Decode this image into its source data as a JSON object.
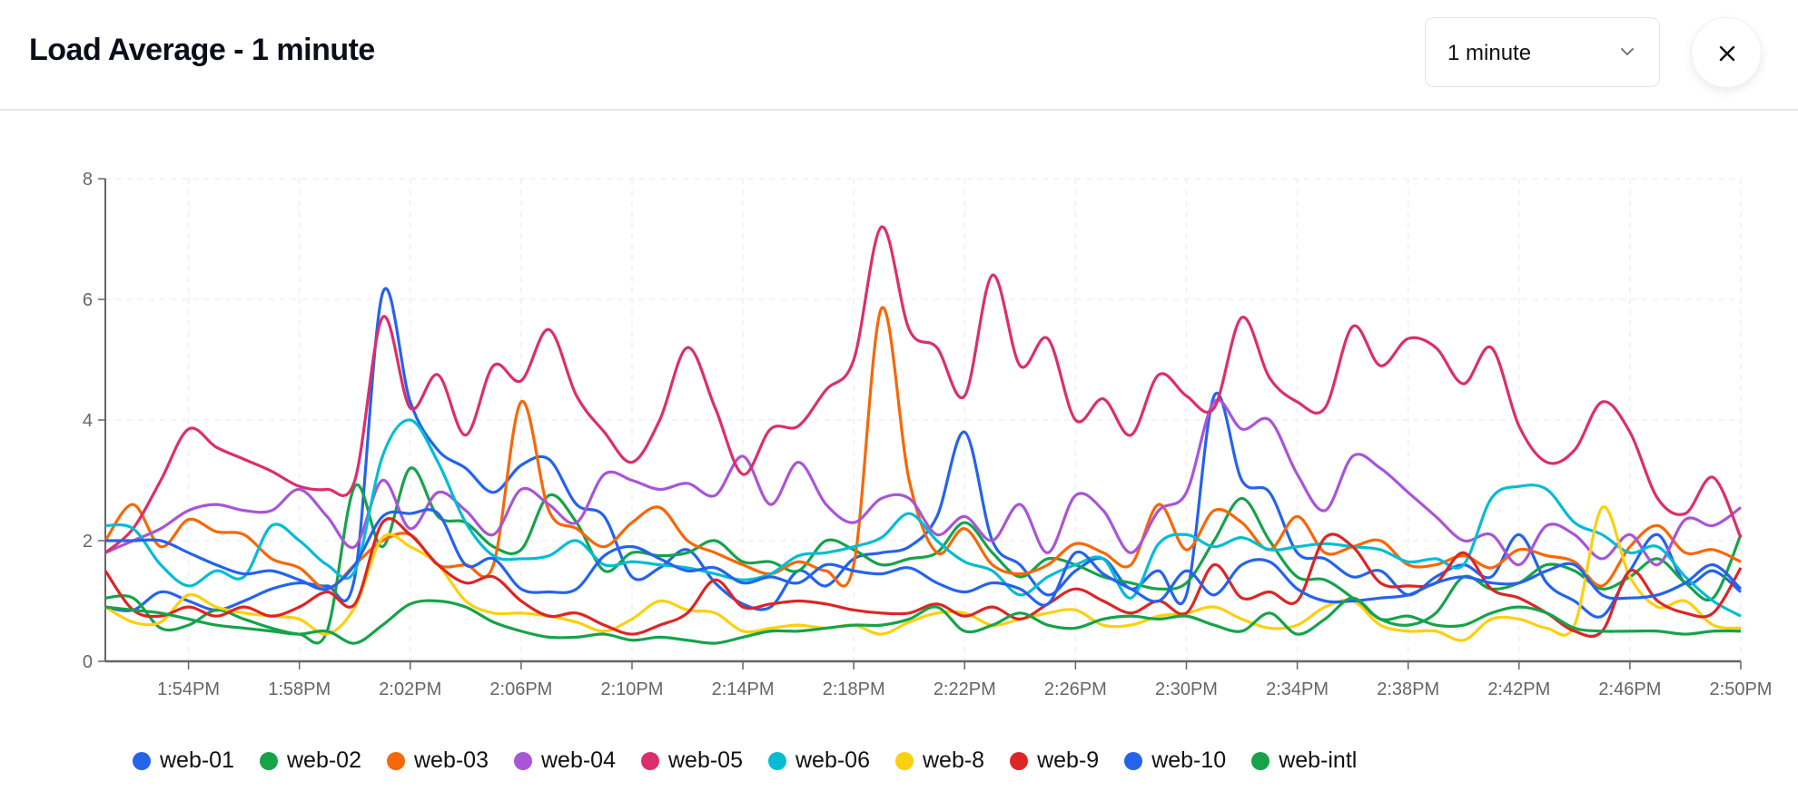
{
  "header": {
    "title": "Load Average - 1 minute",
    "select_value": "1 minute",
    "select_icon": "chevron-down-icon",
    "close_icon": "close-icon"
  },
  "chart_data": {
    "type": "line",
    "title": "",
    "xlabel": "",
    "ylabel": "",
    "ylim": [
      0,
      8
    ],
    "yticks": [
      "0",
      "2",
      "4",
      "6",
      "8"
    ],
    "xlim": [
      "1:51PM",
      "2:50PM"
    ],
    "xticks": [
      "1:54PM",
      "1:58PM",
      "2:02PM",
      "2:06PM",
      "2:10PM",
      "2:14PM",
      "2:18PM",
      "2:22PM",
      "2:26PM",
      "2:30PM",
      "2:34PM",
      "2:38PM",
      "2:42PM",
      "2:46PM",
      "2:50PM"
    ],
    "grid": true,
    "legend_placement": "bottom",
    "x": [
      "1:51PM",
      "1:52PM",
      "1:53PM",
      "1:54PM",
      "1:55PM",
      "1:56PM",
      "1:57PM",
      "1:58PM",
      "1:59PM",
      "2:00PM",
      "2:01PM",
      "2:02PM",
      "2:03PM",
      "2:04PM",
      "2:05PM",
      "2:06PM",
      "2:07PM",
      "2:08PM",
      "2:09PM",
      "2:10PM",
      "2:11PM",
      "2:12PM",
      "2:13PM",
      "2:14PM",
      "2:15PM",
      "2:16PM",
      "2:17PM",
      "2:18PM",
      "2:19PM",
      "2:20PM",
      "2:21PM",
      "2:22PM",
      "2:23PM",
      "2:24PM",
      "2:25PM",
      "2:26PM",
      "2:27PM",
      "2:28PM",
      "2:29PM",
      "2:30PM",
      "2:31PM",
      "2:32PM",
      "2:33PM",
      "2:34PM",
      "2:35PM",
      "2:36PM",
      "2:37PM",
      "2:38PM",
      "2:39PM",
      "2:40PM",
      "2:41PM",
      "2:42PM",
      "2:43PM",
      "2:44PM",
      "2:45PM",
      "2:46PM",
      "2:47PM",
      "2:48PM",
      "2:49PM",
      "2:50PM"
    ],
    "series": [
      {
        "name": "web-01",
        "color": "#2563eb",
        "values": [
          0.9,
          0.85,
          1.15,
          1.0,
          0.85,
          1.0,
          1.2,
          1.3,
          1.25,
          1.4,
          6.1,
          4.3,
          3.5,
          3.2,
          2.8,
          3.25,
          3.35,
          2.6,
          2.4,
          1.4,
          1.55,
          1.85,
          1.3,
          0.95,
          0.9,
          1.5,
          1.25,
          1.7,
          1.8,
          1.9,
          2.4,
          3.8,
          2.0,
          1.6,
          1.1,
          1.5,
          1.7,
          1.2,
          1.5,
          1.1,
          4.4,
          3.0,
          2.8,
          1.8,
          1.7,
          1.4,
          1.5,
          1.1,
          1.4,
          1.6,
          1.4,
          2.1,
          1.3,
          1.0,
          0.75,
          1.5,
          2.1,
          1.3,
          1.5,
          1.15
        ]
      },
      {
        "name": "web-02",
        "color": "#16a34a",
        "values": [
          1.05,
          1.05,
          0.55,
          0.6,
          0.85,
          0.7,
          0.55,
          0.45,
          0.5,
          2.9,
          1.9,
          3.2,
          2.4,
          2.3,
          1.9,
          1.85,
          2.75,
          2.3,
          1.5,
          1.8,
          1.75,
          1.8,
          2.0,
          1.65,
          1.65,
          1.5,
          2.0,
          1.85,
          1.6,
          1.7,
          1.8,
          2.3,
          1.8,
          1.4,
          1.7,
          1.6,
          1.4,
          1.3,
          1.2,
          1.3,
          2.0,
          2.7,
          2.0,
          1.4,
          1.35,
          1.05,
          0.7,
          0.6,
          0.8,
          1.4,
          1.2,
          1.3,
          1.6,
          1.5,
          1.2,
          1.4,
          1.7,
          1.3,
          1.05,
          2.1
        ]
      },
      {
        "name": "web-03",
        "color": "#f76707",
        "values": [
          2.0,
          2.6,
          1.9,
          2.35,
          2.15,
          2.1,
          1.7,
          1.55,
          1.2,
          1.6,
          2.0,
          2.1,
          1.6,
          1.6,
          1.6,
          4.3,
          2.5,
          2.2,
          1.9,
          2.3,
          2.55,
          2.0,
          1.8,
          1.6,
          1.45,
          1.65,
          1.5,
          1.6,
          5.85,
          3.0,
          1.8,
          2.2,
          1.6,
          1.45,
          1.6,
          1.95,
          1.8,
          1.6,
          2.6,
          1.85,
          2.5,
          2.3,
          1.85,
          2.4,
          1.8,
          1.9,
          2.0,
          1.6,
          1.6,
          1.75,
          1.55,
          1.85,
          1.75,
          1.65,
          1.25,
          1.9,
          2.25,
          1.8,
          1.85,
          1.65
        ]
      },
      {
        "name": "web-04",
        "color": "#a855d8",
        "values": [
          1.8,
          2.0,
          2.2,
          2.5,
          2.6,
          2.5,
          2.5,
          2.85,
          2.4,
          1.9,
          3.0,
          2.2,
          2.8,
          2.5,
          2.1,
          2.85,
          2.6,
          2.3,
          3.1,
          3.0,
          2.85,
          2.95,
          2.75,
          3.4,
          2.6,
          3.3,
          2.6,
          2.3,
          2.7,
          2.7,
          2.1,
          2.4,
          2.0,
          2.6,
          1.8,
          2.75,
          2.5,
          1.8,
          2.5,
          2.8,
          4.3,
          3.85,
          4.0,
          3.1,
          2.5,
          3.4,
          3.2,
          2.8,
          2.4,
          2.0,
          2.1,
          1.6,
          2.25,
          2.1,
          1.7,
          2.1,
          1.6,
          2.35,
          2.25,
          2.55
        ]
      },
      {
        "name": "web-05",
        "color": "#db2f6c",
        "values": [
          1.8,
          2.2,
          3.0,
          3.85,
          3.55,
          3.35,
          3.15,
          2.9,
          2.85,
          3.0,
          5.7,
          4.2,
          4.75,
          3.75,
          4.9,
          4.65,
          5.5,
          4.4,
          3.8,
          3.3,
          4.0,
          5.2,
          4.2,
          3.1,
          3.85,
          3.9,
          4.5,
          5.0,
          7.2,
          5.5,
          5.2,
          4.4,
          6.4,
          4.9,
          5.35,
          4.0,
          4.35,
          3.75,
          4.75,
          4.4,
          4.2,
          5.7,
          4.7,
          4.3,
          4.2,
          5.55,
          4.9,
          5.35,
          5.2,
          4.6,
          5.2,
          3.9,
          3.3,
          3.5,
          4.3,
          3.8,
          2.7,
          2.45,
          3.05,
          2.05
        ]
      },
      {
        "name": "web-06",
        "color": "#06bcd4",
        "values": [
          2.25,
          2.2,
          1.6,
          1.25,
          1.5,
          1.4,
          2.25,
          2.0,
          1.6,
          1.5,
          3.4,
          4.0,
          3.3,
          2.3,
          1.75,
          1.7,
          1.75,
          2.0,
          1.6,
          1.65,
          1.6,
          1.55,
          1.45,
          1.35,
          1.45,
          1.75,
          1.8,
          1.9,
          2.05,
          2.45,
          2.0,
          1.65,
          1.5,
          1.1,
          1.4,
          1.6,
          1.7,
          1.05,
          1.95,
          2.1,
          1.9,
          2.05,
          1.85,
          1.9,
          1.95,
          1.9,
          1.85,
          1.65,
          1.7,
          1.6,
          2.7,
          2.9,
          2.85,
          2.3,
          2.1,
          1.8,
          1.9,
          1.4,
          1.0,
          0.75
        ]
      },
      {
        "name": "web-8",
        "color": "#fcd00e",
        "values": [
          0.9,
          0.65,
          0.65,
          1.1,
          0.9,
          0.8,
          0.75,
          0.7,
          0.45,
          0.9,
          2.05,
          1.9,
          1.6,
          1.0,
          0.8,
          0.8,
          0.75,
          0.65,
          0.5,
          0.7,
          1.0,
          0.85,
          0.8,
          0.5,
          0.55,
          0.6,
          0.55,
          0.6,
          0.45,
          0.65,
          0.8,
          0.8,
          0.6,
          0.7,
          0.8,
          0.85,
          0.6,
          0.6,
          0.75,
          0.8,
          0.9,
          0.7,
          0.55,
          0.6,
          0.9,
          1.0,
          0.6,
          0.5,
          0.5,
          0.35,
          0.7,
          0.7,
          0.55,
          0.6,
          2.55,
          1.4,
          0.9,
          1.0,
          0.6,
          0.55
        ]
      },
      {
        "name": "web-9",
        "color": "#dc2626",
        "values": [
          1.5,
          0.85,
          0.75,
          0.9,
          0.75,
          0.9,
          0.75,
          0.9,
          1.15,
          0.95,
          2.3,
          2.1,
          1.6,
          1.3,
          1.4,
          1.0,
          0.75,
          0.8,
          0.6,
          0.45,
          0.6,
          0.8,
          1.35,
          0.9,
          0.95,
          1.0,
          0.95,
          0.85,
          0.8,
          0.8,
          0.95,
          0.75,
          0.9,
          0.7,
          0.95,
          1.2,
          1.0,
          0.8,
          1.0,
          0.8,
          1.6,
          1.05,
          1.15,
          1.0,
          2.05,
          1.9,
          1.3,
          1.25,
          1.3,
          1.8,
          1.2,
          1.05,
          0.8,
          0.5,
          0.5,
          1.5,
          1.0,
          0.8,
          0.8,
          1.55
        ]
      },
      {
        "name": "web-10",
        "color": "#2563eb",
        "values": [
          2.0,
          2.0,
          2.0,
          1.8,
          1.6,
          1.45,
          1.5,
          1.35,
          1.2,
          1.6,
          2.4,
          2.45,
          2.45,
          1.6,
          1.7,
          1.2,
          1.15,
          1.2,
          1.75,
          1.9,
          1.7,
          1.5,
          1.55,
          1.3,
          1.4,
          1.3,
          1.6,
          1.5,
          1.45,
          1.55,
          1.3,
          1.15,
          1.3,
          1.2,
          0.95,
          1.8,
          1.45,
          1.2,
          1.0,
          1.5,
          1.1,
          1.6,
          1.65,
          1.2,
          1.0,
          1.0,
          1.05,
          1.1,
          1.3,
          1.4,
          1.3,
          1.3,
          1.5,
          1.6,
          1.1,
          1.05,
          1.1,
          1.3,
          1.6,
          1.2
        ]
      },
      {
        "name": "web-intl",
        "color": "#16a34a",
        "values": [
          0.9,
          0.85,
          0.8,
          0.7,
          0.6,
          0.55,
          0.5,
          0.45,
          0.5,
          0.3,
          0.6,
          0.95,
          1.0,
          0.9,
          0.65,
          0.5,
          0.4,
          0.4,
          0.45,
          0.35,
          0.4,
          0.35,
          0.3,
          0.4,
          0.5,
          0.5,
          0.55,
          0.6,
          0.6,
          0.7,
          0.9,
          0.5,
          0.6,
          0.8,
          0.6,
          0.55,
          0.7,
          0.75,
          0.7,
          0.75,
          0.6,
          0.5,
          0.8,
          0.45,
          0.7,
          1.05,
          0.7,
          0.75,
          0.6,
          0.6,
          0.8,
          0.9,
          0.8,
          0.55,
          0.5,
          0.5,
          0.5,
          0.45,
          0.5,
          0.5
        ]
      }
    ]
  }
}
